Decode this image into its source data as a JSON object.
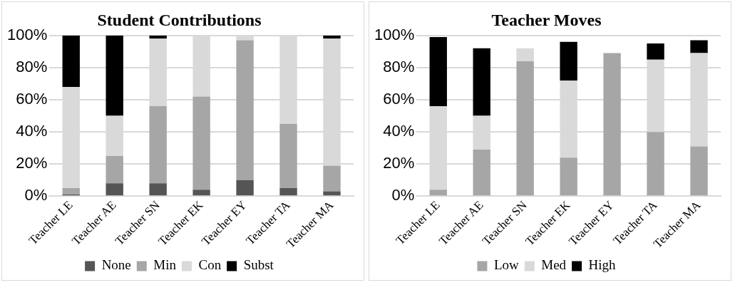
{
  "chart_data": [
    {
      "type": "bar",
      "title": "Student Contributions",
      "stacked": true,
      "grid": "y",
      "legend": "bottom",
      "categories": [
        "Teacher LE",
        "Teacher AE",
        "Teacher SN",
        "Teacher EK",
        "Teacher EY",
        "Teacher TA",
        "Teacher MA"
      ],
      "ylim": [
        0,
        100
      ],
      "yticks": [
        {
          "value": 0,
          "label": "0%"
        },
        {
          "value": 20,
          "label": "20%"
        },
        {
          "value": 40,
          "label": "40%"
        },
        {
          "value": 60,
          "label": "60%"
        },
        {
          "value": 80,
          "label": "80%"
        },
        {
          "value": 100,
          "label": "100%"
        }
      ],
      "series": [
        {
          "name": "None",
          "color": "#555555",
          "values": [
            1,
            8,
            8,
            4,
            10,
            5,
            3
          ]
        },
        {
          "name": "Min",
          "color": "#a6a6a6",
          "values": [
            4,
            17,
            48,
            58,
            87,
            40,
            16
          ]
        },
        {
          "name": "Con",
          "color": "#d9d9d9",
          "values": [
            63,
            25,
            42,
            38,
            3,
            55,
            79
          ]
        },
        {
          "name": "Subst",
          "color": "#000000",
          "values": [
            32,
            50,
            2,
            0,
            0,
            0,
            2
          ]
        }
      ]
    },
    {
      "type": "bar",
      "title": "Teacher Moves",
      "stacked": true,
      "grid": "y",
      "legend": "bottom",
      "categories": [
        "Teacher LE",
        "Teacher AE",
        "Teacher SN",
        "Teacher EK",
        "Teacher EY",
        "Teacher TA",
        "Teacher MA"
      ],
      "ylim": [
        0,
        100
      ],
      "yticks": [
        {
          "value": 0,
          "label": "0%"
        },
        {
          "value": 20,
          "label": "20%"
        },
        {
          "value": 40,
          "label": "40%"
        },
        {
          "value": 60,
          "label": "60%"
        },
        {
          "value": 80,
          "label": "80%"
        },
        {
          "value": 100,
          "label": "100%"
        }
      ],
      "series": [
        {
          "name": "Low",
          "color": "#a6a6a6",
          "values": [
            4,
            29,
            84,
            24,
            89,
            40,
            31
          ]
        },
        {
          "name": "Med",
          "color": "#d9d9d9",
          "values": [
            52,
            21,
            8,
            48,
            0,
            45,
            58
          ]
        },
        {
          "name": "High",
          "color": "#000000",
          "values": [
            43,
            42,
            0,
            24,
            0,
            10,
            8
          ]
        }
      ]
    }
  ]
}
